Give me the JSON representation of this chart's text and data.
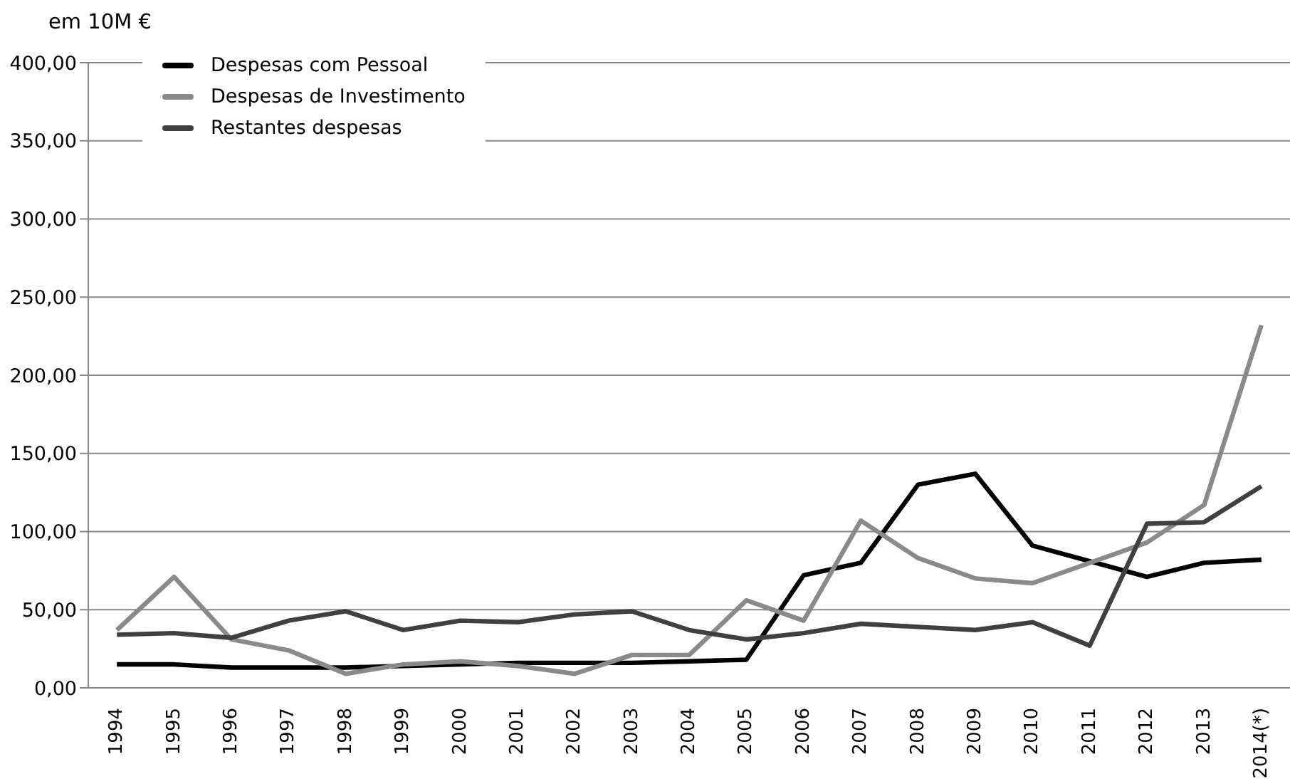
{
  "chart_data": {
    "type": "line",
    "annotations": [
      "em 10M €"
    ],
    "categories": [
      "1994",
      "1995",
      "1996",
      "1997",
      "1998",
      "1999",
      "2000",
      "2001",
      "2002",
      "2003",
      "2004",
      "2005",
      "2006",
      "2007",
      "2008",
      "2009",
      "2010",
      "2011",
      "2012",
      "2013",
      "2014(*)"
    ],
    "series": [
      {
        "name": "Despesas com Pessoal",
        "color": "#000000",
        "values": [
          15,
          15,
          13,
          13,
          13,
          14,
          15,
          16,
          16,
          16,
          17,
          18,
          72,
          80,
          130,
          137,
          91,
          81,
          71,
          80,
          82
        ]
      },
      {
        "name": "Despesas de Investimento",
        "color": "#8a8a8a",
        "values": [
          37,
          71,
          31,
          24,
          9,
          15,
          17,
          14,
          9,
          21,
          21,
          56,
          43,
          107,
          83,
          70,
          67,
          80,
          93,
          117,
          232
        ]
      },
      {
        "name": "Restantes despesas",
        "color": "#404040",
        "values": [
          34,
          35,
          32,
          43,
          49,
          37,
          43,
          42,
          47,
          49,
          37,
          31,
          35,
          41,
          39,
          37,
          42,
          27,
          105,
          106,
          129
        ]
      }
    ],
    "ylim": [
      0,
      400
    ],
    "yticks": [
      {
        "value": 0,
        "label": "0,00"
      },
      {
        "value": 50,
        "label": "50,00"
      },
      {
        "value": 100,
        "label": "100,00"
      },
      {
        "value": 150,
        "label": "150,00"
      },
      {
        "value": 200,
        "label": "200,00"
      },
      {
        "value": 250,
        "label": "250,00"
      },
      {
        "value": 300,
        "label": "300,00"
      },
      {
        "value": 350,
        "label": "350,00"
      },
      {
        "value": 400,
        "label": "400,00"
      }
    ],
    "grid": "y",
    "legend": "top left",
    "marker": "none",
    "line_style": "solid"
  }
}
